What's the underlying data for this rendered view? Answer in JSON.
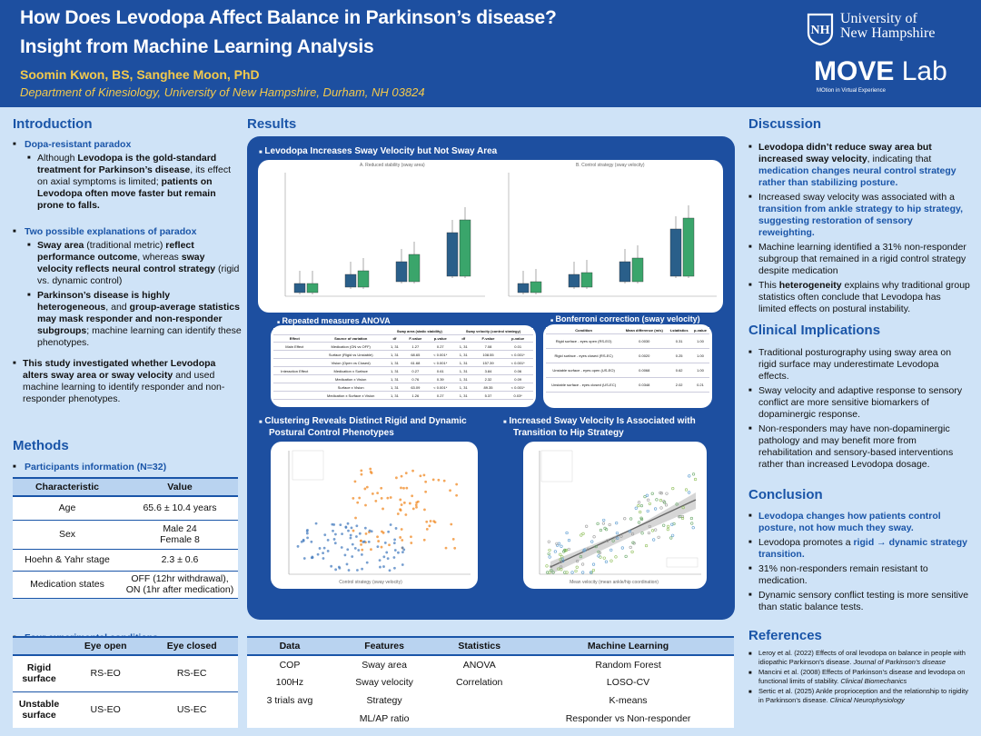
{
  "header": {
    "title_line1": "How Does Levodopa Affect Balance in Parkinson’s disease?",
    "title_line2": "Insight from Machine Learning Analysis",
    "authors": "Soomin Kwon, BS,  Sanghee Moon, PhD",
    "department": "Department of Kinesiology, University of New Hampshire, Durham, NH 03824",
    "university_line1": "University of",
    "university_line2": "New Hampshire",
    "lab_name_bold": "MOVE",
    "lab_name_light": " Lab",
    "lab_tagline": "MOtion in Virtual Experience"
  },
  "introduction": {
    "heading": "Introduction",
    "sub1": "Dopa-resistant paradox",
    "b1_pre": "Although ",
    "b1_bold": "Levodopa is the gold-standard treatment for Parkinson’s disease",
    "b1_mid": ", its effect on axial symptoms is limited; ",
    "b1_bold2": "patients on Levodopa often move faster but remain prone to falls.",
    "sub2": "Two possible explanations of paradox",
    "b2_bold": "Sway area",
    "b2_mid": " (traditional metric) ",
    "b2_bold2": "reflect performance outcome",
    "b2_mid2": ", whereas ",
    "b2_bold3": "sway velocity reflects neural control strategy",
    "b2_end": " (rigid vs. dynamic control)",
    "b3_bold": "Parkinson’s disease is highly heterogeneous",
    "b3_mid": ", and ",
    "b3_bold2": "group-average statistics may mask responder and non-responder subgroups",
    "b3_end": "; machine learning can identify these phenotypes.",
    "b4_bold": "This study investigated whether Levodopa alters sway area or sway velocity",
    "b4_end": " and used machine learning to identify responder and non-responder phenotypes."
  },
  "methods": {
    "heading": "Methods",
    "participants_title": "Participants information (N=32)",
    "participants_headers": [
      "Characteristic",
      "Value"
    ],
    "participants_rows": [
      [
        "Age",
        "65.6 ± 10.4 years"
      ],
      [
        "Sex",
        "Male 24",
        "Female 8"
      ],
      [
        "Hoehn & Yahr stage",
        "2.3 ±  0.6"
      ],
      [
        "Medication states",
        "OFF (12hr withdrawal),",
        "ON (1hr after medication)"
      ]
    ],
    "conditions_title": "Four experimental conditions",
    "conditions_headers": [
      "",
      "Eye open",
      "Eye closed"
    ],
    "conditions_rows": [
      [
        "Rigid surface",
        "RS-EO",
        "RS-EC"
      ],
      [
        "Unstable surface",
        "US-EO",
        "US-EC"
      ]
    ]
  },
  "results": {
    "heading": "Results",
    "panel1_title": "Levodopa Increases Sway Velocity but Not Sway Area",
    "panel1_sub_a": "A. Reduced stability (sway area)",
    "panel1_sub_b": "B. Control strategy (sway velocity)",
    "anova_title": "Repeated measures ANOVA",
    "anova_headers": [
      "Effect",
      "Source of variation",
      "df",
      "F-value",
      "p-value",
      "df",
      "F-value",
      "p-value"
    ],
    "anova_group_a": "Sway area (static stability)",
    "anova_group_b": "Sway velocity (control strategy)",
    "anova_rows": [
      [
        "Main Effect",
        "Medication (ON vs OFF)",
        "1, 31",
        "1.27",
        "0.27",
        "1, 31",
        "7.08",
        "0.01"
      ],
      [
        "",
        "Surface (Rigid vs Unstable)",
        "1, 31",
        "68.65",
        "< 0.001*",
        "1, 31",
        "108.55",
        "< 0.001*"
      ],
      [
        "",
        "Vision (Open vs Closed)",
        "1, 31",
        "61.68",
        "< 0.001*",
        "1, 31",
        "157.39",
        "< 0.001*"
      ],
      [
        "Interaction Effect",
        "Medication x Surface",
        "1, 31",
        "0.27",
        "0.61",
        "1, 31",
        "3.84",
        "0.06"
      ],
      [
        "",
        "Medication x Vision",
        "1, 31",
        "0.76",
        "0.39",
        "1, 31",
        "2.32",
        "0.09"
      ],
      [
        "",
        "Surface x Vision",
        "1, 31",
        "63.09",
        "< 0.001*",
        "1, 31",
        "89.35",
        "< 0.001*"
      ],
      [
        "",
        "Medication x Surface x Vision",
        "1, 31",
        "1.26",
        "0.27",
        "1, 31",
        "5.37",
        "0.03*"
      ]
    ],
    "bonf_title": "Bonferroni correction (sway velocity)",
    "bonf_headers": [
      "Condition",
      "Mean difference (m/s)",
      "t-statistics",
      "p-value"
    ],
    "bonf_rows": [
      [
        "Rigid surface - eyes open (RS-EO)",
        "0.0030",
        "0.31",
        "1.00"
      ],
      [
        "Rigid surface - eyes closed (RS-EC)",
        "0.0020",
        "0.25",
        "1.00"
      ],
      [
        "Unstable surface - eyes open (US-EO)",
        "0.0068",
        "0.62",
        "1.00"
      ],
      [
        "Unstable surface - eyes closed (US-EC)",
        "0.0348",
        "2.02",
        "0.21"
      ]
    ],
    "cluster_title_1": "Clustering Reveals Distinct Rigid and Dynamic",
    "cluster_title_2": "Postural Control Phenotypes",
    "increase_title_1": "Increased Sway Velocity Is Associated with",
    "increase_title_2": "Transition to Hip Strategy",
    "scatter_xlabel": "Control strategy (sway velocity)",
    "regress_xlabel": "Mean velocity (mean ankle/hip coordination)",
    "data_title": "Data characteristics and analysis",
    "data_headers": [
      "Data",
      "Features",
      "Statistics",
      "Machine Learning"
    ],
    "data_rows": [
      [
        "COP",
        "Sway area",
        "ANOVA",
        "Random Forest"
      ],
      [
        "100Hz",
        "Sway velocity",
        "Correlation",
        "LOSO-CV"
      ],
      [
        "3 trials avg",
        "Strategy",
        "",
        "K-means"
      ],
      [
        "",
        "ML/AP ratio",
        "",
        "Responder vs Non-responder"
      ]
    ]
  },
  "discussion": {
    "heading": "Discussion",
    "d1_bold": "Levodopa didn’t reduce sway area but increased sway velocity",
    "d1_mid": ", indicating that ",
    "d1_blue": "medication changes neural control strategy rather than stabilizing posture.",
    "d2_pre": "Increased sway velocity was associated with a ",
    "d2_blue": "transition from ankle strategy to hip strategy, suggesting restoration of sensory reweighting.",
    "d3": "Machine learning identified a 31% non-responder subgroup that remained in a rigid control strategy despite medication",
    "d4_pre": "This ",
    "d4_bold": "heterogeneity",
    "d4_end": " explains why traditional group statistics often conclude that Levodopa has limited effects on postural instability."
  },
  "clinical": {
    "heading": "Clinical Implications",
    "items": [
      "Traditional posturography using sway area on rigid surface may underestimate Levodopa effects.",
      "Sway velocity and adaptive response to sensory conflict are more sensitive biomarkers of dopaminergic response.",
      "Non-responders may have non-dopaminergic pathology and may benefit more from rehabilitation and sensory-based interventions rather than increased Levodopa dosage."
    ]
  },
  "conclusion": {
    "heading": "Conclusion",
    "c1": "Levodopa changes how patients control posture, not how much they sway.",
    "c2_pre": "Levodopa promotes a ",
    "c2_blue": "rigid → dynamic strategy transition.",
    "c3": "31% non-responders remain resistant to medication.",
    "c4": "Dynamic sensory conflict testing is more sensitive than static balance tests."
  },
  "references": {
    "heading": "References",
    "r1": "Leroy et al. (2022) Effects of oral levodopa on balance in people with idiopathic Parkinson’s disease.",
    "r1_journal": "Journal of Parkinson’s disease",
    "r2": "Mancini et al. (2008) Effects of Parkinson’s disease and levodopa on functional limits of stability.",
    "r2_journal": "Clinical Biomechanics",
    "r3": "Sertic et al. (2025) Ankle proprioception and the relationship to rigidity in Parkinson’s disease.",
    "r3_journal": "Clinical Neurophysiology"
  },
  "colors": {
    "header_bg": "#1d4fa0",
    "accent": "#1a55a8",
    "gold": "#f2c94c",
    "page_bg": "#cfe3f7",
    "off": "#2a5f8a",
    "on": "#3aa56b",
    "cluster_orange": "#f08a24"
  }
}
